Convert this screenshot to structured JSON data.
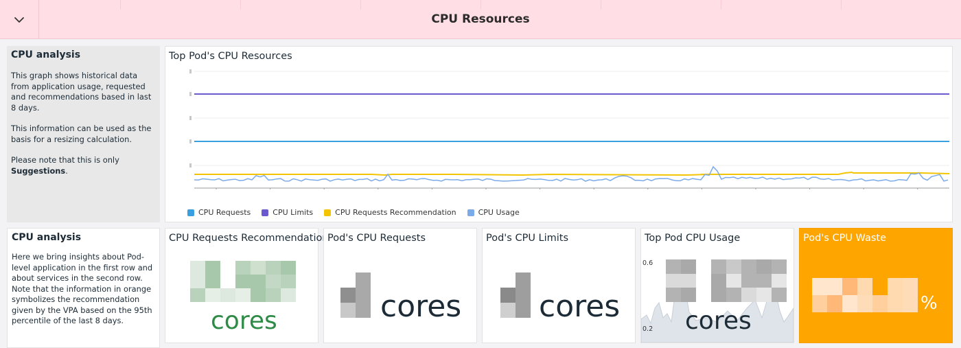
{
  "header": {
    "title": "CPU Resources",
    "collapse_icon": "chevron-down-icon"
  },
  "note_top": {
    "title": "CPU analysis",
    "p1": "This graph shows historical data from application usage, requested and recommendations based in last 8 days.",
    "p2": "This information can be used as the basis for a resizing calculation.",
    "p3_prefix": "Please note that this is only ",
    "p3_bold": "Suggestions",
    "p3_suffix": "."
  },
  "note_bottom": {
    "title": "CPU analysis",
    "body": "Here we bring insights about Pod-level application in the first row and about services in the second row. Note that the information in orange symbolizes the recommendation given by the VPA based on the 95th percentile of the last 8 days."
  },
  "timeseries": {
    "title": "Top Pod's CPU Resources",
    "x_ticks": [
      "Thu 5",
      "12:00",
      "Fri 6",
      "12:00",
      "Sat 7",
      "12:00",
      "Jan 8",
      "12:00",
      "Mon 9",
      "12:00",
      "Tue 10",
      "12:00",
      "Wed 11",
      "12:00"
    ],
    "legend": [
      {
        "label": "CPU Requests",
        "color": "#3a9fdf"
      },
      {
        "label": "CPU Limits",
        "color": "#6a5acd"
      },
      {
        "label": "CPU Requests Recommendation",
        "color": "#f2c500"
      },
      {
        "label": "CPU Usage",
        "color": "#7aaae8"
      }
    ]
  },
  "chart_data": {
    "type": "line",
    "title": "Top Pod's CPU Resources",
    "x": [
      "Thu 5",
      "12:00",
      "Fri 6",
      "12:00",
      "Sat 7",
      "12:00",
      "Jan 8",
      "12:00",
      "Mon 9",
      "12:00",
      "Tue 10",
      "12:00",
      "Wed 11",
      "12:00"
    ],
    "series": [
      {
        "name": "CPU Requests",
        "color": "#3a9fdf"
      },
      {
        "name": "CPU Limits",
        "color": "#6a5acd"
      },
      {
        "name": "CPU Requests Recommendation",
        "color": "#f2c500"
      },
      {
        "name": "CPU Usage",
        "color": "#7aaae8"
      }
    ],
    "grid": true,
    "legend_position": "bottom"
  },
  "stats": {
    "recommendation": {
      "title": "CPU Requests Recommendation",
      "unit": "cores",
      "unit_color": "#2e8b46"
    },
    "requests": {
      "title": "Pod's CPU Requests",
      "unit": "cores"
    },
    "limits": {
      "title": "Pod's CPU Limits",
      "unit": "cores"
    },
    "usage": {
      "title": "Top Pod CPU Usage",
      "unit": "cores",
      "axis_top": "0.6",
      "axis_bottom": "0.2"
    },
    "waste": {
      "title": "Pod's CPU Waste",
      "unit": "%",
      "bg": "#ffa500"
    }
  }
}
